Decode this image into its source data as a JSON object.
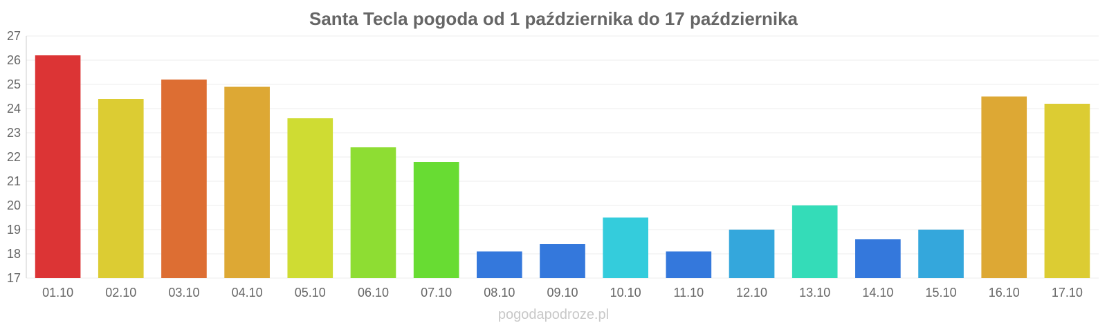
{
  "chart_data": {
    "type": "bar",
    "title": "Santa Tecla pogoda od 1 października do 17 października",
    "xlabel": "",
    "ylabel": "",
    "categories": [
      "01.10",
      "02.10",
      "03.10",
      "04.10",
      "05.10",
      "06.10",
      "07.10",
      "08.10",
      "09.10",
      "10.10",
      "11.10",
      "12.10",
      "13.10",
      "14.10",
      "15.10",
      "16.10",
      "17.10"
    ],
    "values": [
      26.2,
      24.4,
      25.2,
      24.9,
      23.6,
      22.4,
      21.8,
      18.1,
      18.4,
      19.5,
      18.1,
      19.0,
      20.0,
      18.6,
      19.0,
      24.5,
      24.2
    ],
    "colors": [
      "#dc3435",
      "#dccc33",
      "#dd6e33",
      "#dda834",
      "#cfdc33",
      "#8edd33",
      "#68dc33",
      "#3478dc",
      "#3478dc",
      "#34ccdc",
      "#3478dc",
      "#34a7dc",
      "#34dcb8",
      "#3478dc",
      "#34a7dc",
      "#dda834",
      "#dccc33"
    ],
    "ylim": [
      17,
      27
    ],
    "yticks": [
      "17",
      "18",
      "19",
      "20",
      "21",
      "22",
      "23",
      "24",
      "25",
      "26",
      "27"
    ],
    "grid": true,
    "legend": "none"
  },
  "watermark": "pogodapodroze.pl"
}
